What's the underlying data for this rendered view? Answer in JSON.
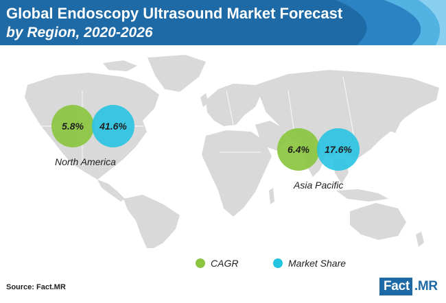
{
  "header": {
    "title": "Global Endoscopy Ultrasound Market Forecast",
    "subtitle": "by Region, 2020-2026"
  },
  "regions": [
    {
      "name": "North America",
      "cagr": "5.8%",
      "market_share": "41.6%"
    },
    {
      "name": "Asia Pacific",
      "cagr": "6.4%",
      "market_share": "17.6%"
    }
  ],
  "legend": {
    "cagr": "CAGR",
    "market_share": "Market Share"
  },
  "footer": {
    "source": "Source: Fact.MR",
    "logo_part1": "Fact",
    "logo_part2": ".MR"
  },
  "colors": {
    "header_blue": "#1d6aa6",
    "cagr_green": "#8bc53f",
    "share_cyan": "#23c3e2",
    "map_gray": "#d9d9d9"
  }
}
